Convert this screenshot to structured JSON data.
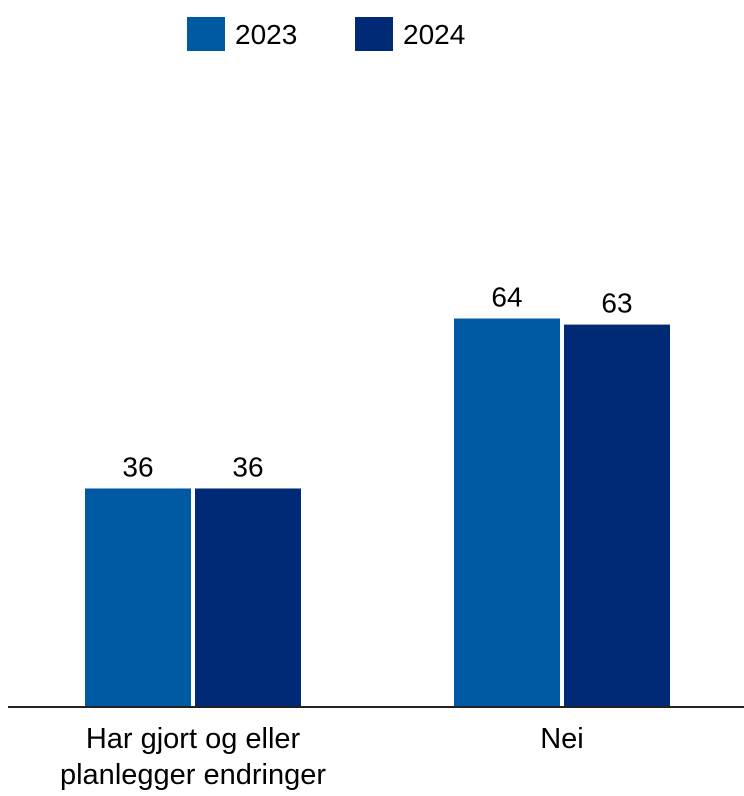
{
  "chart_data": {
    "type": "bar",
    "categories": [
      [
        "Har gjort og eller",
        "planlegger endringer"
      ],
      [
        "Nei"
      ]
    ],
    "series": [
      {
        "name": "2023",
        "values": [
          36,
          64
        ],
        "color": "#005aa3"
      },
      {
        "name": "2024",
        "values": [
          36,
          63
        ],
        "color": "#002a76"
      }
    ],
    "data_labels": true,
    "legend_position": "top-center",
    "ylim": [
      0,
      100
    ],
    "grid": false
  }
}
